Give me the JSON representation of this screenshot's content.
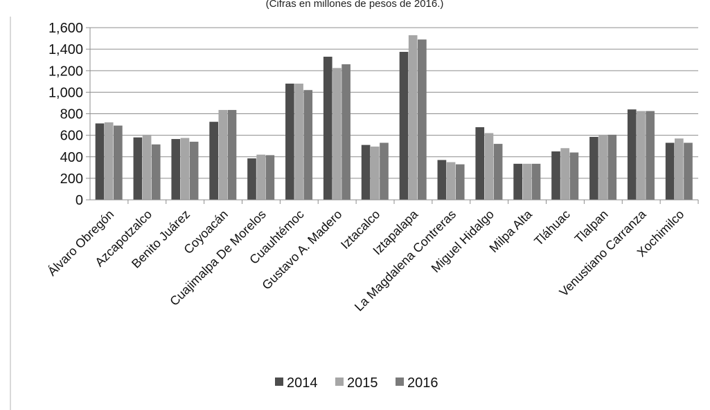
{
  "chart_data": {
    "type": "bar",
    "subtitle": "(Cifras en millones de pesos de 2016.)",
    "categories": [
      "Álvaro Obregón",
      "Azcapotzalco",
      "Benito Juárez",
      "Coyoacán",
      "Cuajimalpa De Morelos",
      "Cuauhtémoc",
      "Gustavo A. Madero",
      "Iztacalco",
      "Iztapalapa",
      "La Magdalena Contreras",
      "Miguel Hidalgo",
      "Milpa Alta",
      "Tláhuac",
      "Tlalpan",
      "Venustiano Carranza",
      "Xochimilco"
    ],
    "series": [
      {
        "name": "2014",
        "color": "#4d4d4d",
        "values": [
          710,
          580,
          565,
          725,
          385,
          1080,
          1330,
          510,
          1375,
          370,
          675,
          335,
          450,
          585,
          840,
          530
        ]
      },
      {
        "name": "2015",
        "color": "#a6a6a6",
        "values": [
          720,
          605,
          575,
          835,
          420,
          1080,
          1225,
          495,
          1530,
          350,
          620,
          335,
          480,
          605,
          825,
          570
        ]
      },
      {
        "name": "2016",
        "color": "#7a7a7a",
        "values": [
          690,
          515,
          540,
          835,
          415,
          1020,
          1260,
          530,
          1490,
          330,
          520,
          335,
          440,
          605,
          825,
          530
        ]
      }
    ],
    "ylim": [
      0,
      1600
    ],
    "yticks": [
      "0",
      "200",
      "400",
      "600",
      "800",
      "1,000",
      "1,200",
      "1,400",
      "1,600"
    ],
    "grid": true,
    "legend_position": "bottom"
  }
}
